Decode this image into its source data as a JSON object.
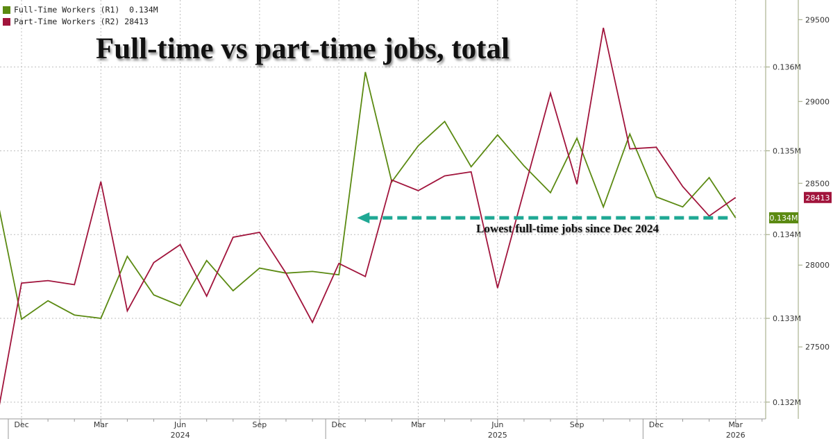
{
  "legend": {
    "full_time": "Full-Time Workers (R1)  0.134M",
    "part_time": "Part-Time Workers (R2) 28413"
  },
  "annotation": "Lowest full-time jobs since Dec 2024",
  "colors": {
    "full_time": "#5b8a12",
    "part_time": "#a1143c",
    "arrow": "#1fa894",
    "grid": "#bdbdbd",
    "axis": "#9aa37a"
  },
  "chart_data": {
    "type": "line",
    "title": "Full-time vs part-time jobs, total",
    "x_tick_labels": [
      "Dec",
      "Mar",
      "Jun",
      "Sep",
      "Dec",
      "Mar",
      "Jun",
      "Sep",
      "Dec",
      "Mar"
    ],
    "year_labels": [
      "2024",
      "2025",
      "2026"
    ],
    "x": [
      "2023-11",
      "2023-12",
      "2024-01",
      "2024-02",
      "2024-03",
      "2024-04",
      "2024-05",
      "2024-06",
      "2024-07",
      "2024-08",
      "2024-09",
      "2024-10",
      "2024-11",
      "2024-12",
      "2025-01",
      "2025-02",
      "2025-03",
      "2025-04",
      "2025-05",
      "2025-06",
      "2025-07",
      "2025-08",
      "2025-09",
      "2025-10",
      "2025-11",
      "2025-12",
      "2026-01",
      "2026-02",
      "2026-03",
      "2026-04"
    ],
    "series": [
      {
        "name": "Full-Time Workers (R1)",
        "axis": "right-inner",
        "unit": "M",
        "last_value_label": "0.134M",
        "values": [
          0.13455,
          0.13299,
          0.13321,
          0.13304,
          0.133,
          0.13374,
          0.13328,
          0.13315,
          0.13369,
          0.13333,
          0.1336,
          0.13354,
          0.13356,
          0.13352,
          0.13594,
          0.13463,
          0.13506,
          0.13535,
          0.13481,
          0.13519,
          0.13482,
          0.1345,
          0.13515,
          0.13433,
          0.1352,
          0.13445,
          0.13433,
          0.13468,
          0.1342,
          0.13422
        ]
      },
      {
        "name": "Part-Time Workers (R2)",
        "axis": "right-outer",
        "last_value_label": "28413",
        "values": [
          27000,
          27890,
          27905,
          27880,
          28510,
          27720,
          28015,
          28125,
          27810,
          28170,
          28200,
          27950,
          27650,
          28010,
          27930,
          28520,
          28455,
          28545,
          28570,
          27860,
          28455,
          29050,
          28495,
          29450,
          28710,
          28720,
          28480,
          28300,
          28413,
          28413
        ]
      }
    ],
    "y_left_ticks": [
      "0.136M",
      "0.135M",
      "0.134M",
      "0.133M",
      "0.132M"
    ],
    "y_left_range": [
      0.1318,
      0.1368
    ],
    "y_right_ticks": [
      "29500",
      "29000",
      "28500",
      "28000",
      "27500"
    ],
    "y_right_range": [
      27060,
      29620
    ],
    "grid": true,
    "legend_position": "top-left"
  }
}
